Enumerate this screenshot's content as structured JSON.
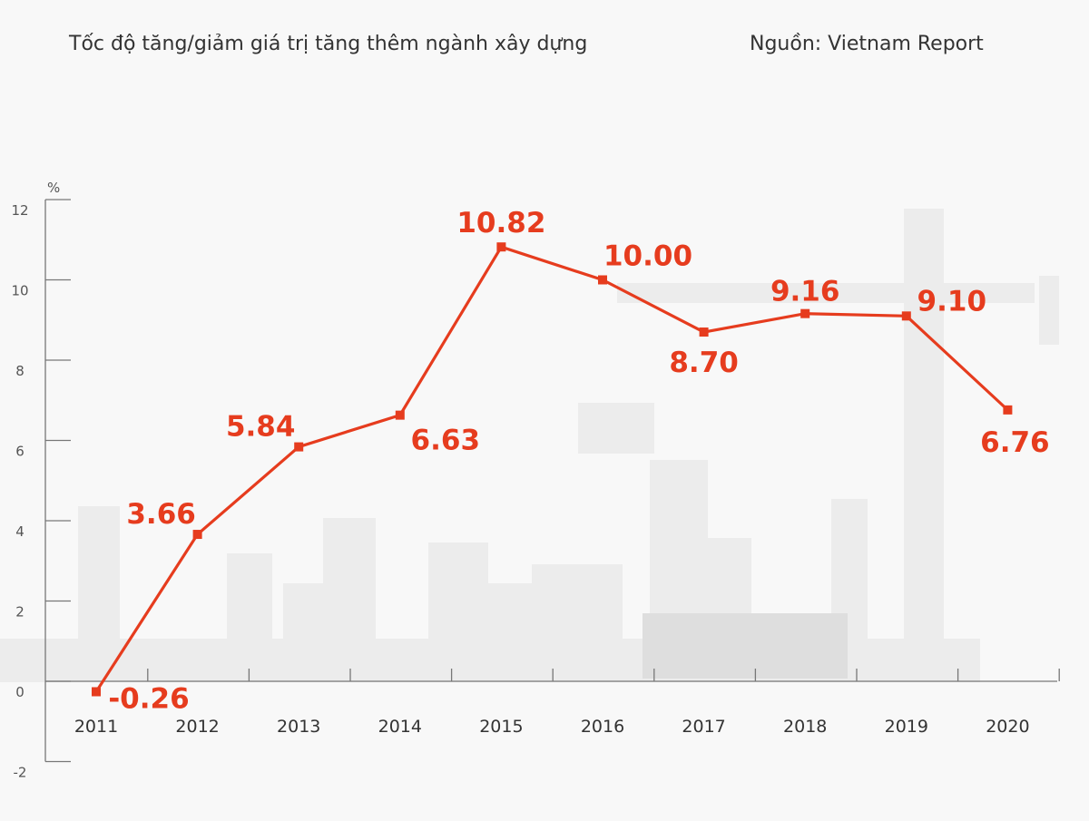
{
  "header": {
    "title": "Tốc độ tăng/giảm giá trị tăng thêm ngành xây dựng",
    "source": "Nguồn: Vietnam Report"
  },
  "chart_data": {
    "type": "line",
    "title": "Tốc độ tăng/giảm giá trị tăng thêm ngành xây dựng",
    "ylabel": "%",
    "categories": [
      "2011",
      "2012",
      "2013",
      "2014",
      "2015",
      "2016",
      "2017",
      "2018",
      "2019",
      "2020"
    ],
    "values": [
      -0.26,
      3.66,
      5.84,
      6.63,
      10.82,
      10.0,
      8.7,
      9.16,
      9.1,
      6.76
    ],
    "data_labels": [
      "-0.26",
      "3.66",
      "5.84",
      "6.63",
      "10.82",
      "10.00",
      "8.70",
      "9.16",
      "9.10",
      "6.76"
    ],
    "ylim": [
      -2,
      12
    ],
    "yticks": [
      "12",
      "10",
      "8",
      "6",
      "4",
      "2",
      "0",
      "-2"
    ],
    "grid": false,
    "color": "#e63c1e"
  }
}
